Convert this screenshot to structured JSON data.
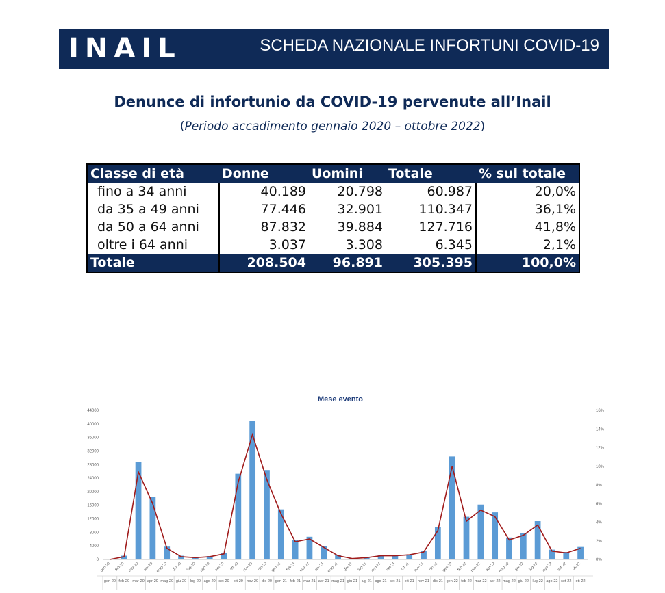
{
  "header": {
    "logo_text": "INAIL",
    "title": "SCHEDA NAZIONALE INFORTUNI COVID-19"
  },
  "document": {
    "title": "Denunce di infortunio da COVID-19 pervenute all’Inail",
    "subtitle_open": "(",
    "subtitle": "Periodo accadimento gennaio 2020 – ottobre 2022",
    "subtitle_close": ")"
  },
  "table": {
    "headers": [
      "Classe di età",
      "Donne",
      "Uomini",
      "Totale",
      "% sul totale"
    ],
    "rows": [
      [
        "fino a 34 anni",
        "40.189",
        "20.798",
        "60.987",
        "20,0%"
      ],
      [
        "da 35 a 49 anni",
        "77.446",
        "32.901",
        "110.347",
        "36,1%"
      ],
      [
        "da 50 a 64 anni",
        "87.832",
        "39.884",
        "127.716",
        "41,8%"
      ],
      [
        "oltre i 64 anni",
        "3.037",
        "3.308",
        "6.345",
        "2,1%"
      ]
    ],
    "total": [
      "Totale",
      "208.504",
      "96.891",
      "305.395",
      "100,0%"
    ]
  },
  "colors": {
    "navy": "#0f2a57",
    "bar": "#5b9bd5",
    "line": "#a01b1b"
  },
  "chart_data": {
    "type": "bar",
    "title": "Mese evento",
    "categories": [
      "gen-20",
      "feb-20",
      "mar-20",
      "apr-20",
      "mag-20",
      "giu-20",
      "lug-20",
      "ago-20",
      "set-20",
      "ott-20",
      "nov-20",
      "dic-20",
      "gen-21",
      "feb-21",
      "mar-21",
      "apr-21",
      "mag-21",
      "giu-21",
      "lug-21",
      "ago-21",
      "set-21",
      "ott-21",
      "nov-21",
      "dic-21",
      "gen-22",
      "feb-22",
      "mar-22",
      "apr-22",
      "mag-22",
      "giu-22",
      "lug-22",
      "ago-22",
      "set-22",
      "ott-22"
    ],
    "bottom_labels": [
      "gen-20",
      "feb-20",
      "mar-20",
      "apr-20",
      "mag-20",
      "giu-20",
      "lug-20",
      "ago-20",
      "set-20",
      "ott-20",
      "nov-20",
      "dic-20",
      "gen-21",
      "feb-21",
      "mar-21",
      "apr-21",
      "mag-21",
      "giu-21",
      "lug-21",
      "ago-21",
      "set-21",
      "ott-21",
      "nov-21",
      "dic-21",
      "gen-22",
      "feb-22",
      "mar-22",
      "apr-22",
      "mag-22",
      "giu-22",
      "lug-22",
      "ago-22",
      "set-22",
      "ott-22"
    ],
    "series": [
      {
        "type": "bar",
        "axis": "left",
        "values": [
          150,
          1100,
          28800,
          18400,
          3800,
          1100,
          700,
          1000,
          1900,
          25300,
          40900,
          26400,
          14800,
          5700,
          6700,
          3900,
          1300,
          400,
          600,
          1300,
          1200,
          1500,
          2500,
          9600,
          30400,
          12600,
          16200,
          13900,
          6500,
          7800,
          11300,
          2900,
          2200,
          3700
        ]
      },
      {
        "type": "line",
        "axis": "right",
        "values": [
          0.0,
          0.3,
          9.4,
          6.0,
          1.2,
          0.3,
          0.2,
          0.3,
          0.6,
          8.3,
          13.4,
          8.6,
          4.9,
          1.9,
          2.2,
          1.3,
          0.4,
          0.1,
          0.2,
          0.4,
          0.4,
          0.5,
          0.8,
          3.1,
          10.0,
          4.1,
          5.3,
          4.6,
          2.1,
          2.6,
          3.7,
          0.9,
          0.7,
          1.2
        ]
      }
    ],
    "y_left": {
      "min": 0,
      "max": 44000,
      "ticks": [
        "0",
        "4000",
        "8000",
        "12000",
        "16000",
        "20000",
        "24000",
        "28000",
        "32000",
        "36000",
        "40000",
        "44000"
      ]
    },
    "y_right": {
      "min": 0,
      "max": 16,
      "ticks": [
        "0%",
        "2%",
        "4%",
        "6%",
        "8%",
        "10%",
        "12%",
        "14%",
        "16%"
      ]
    },
    "grid": false
  }
}
